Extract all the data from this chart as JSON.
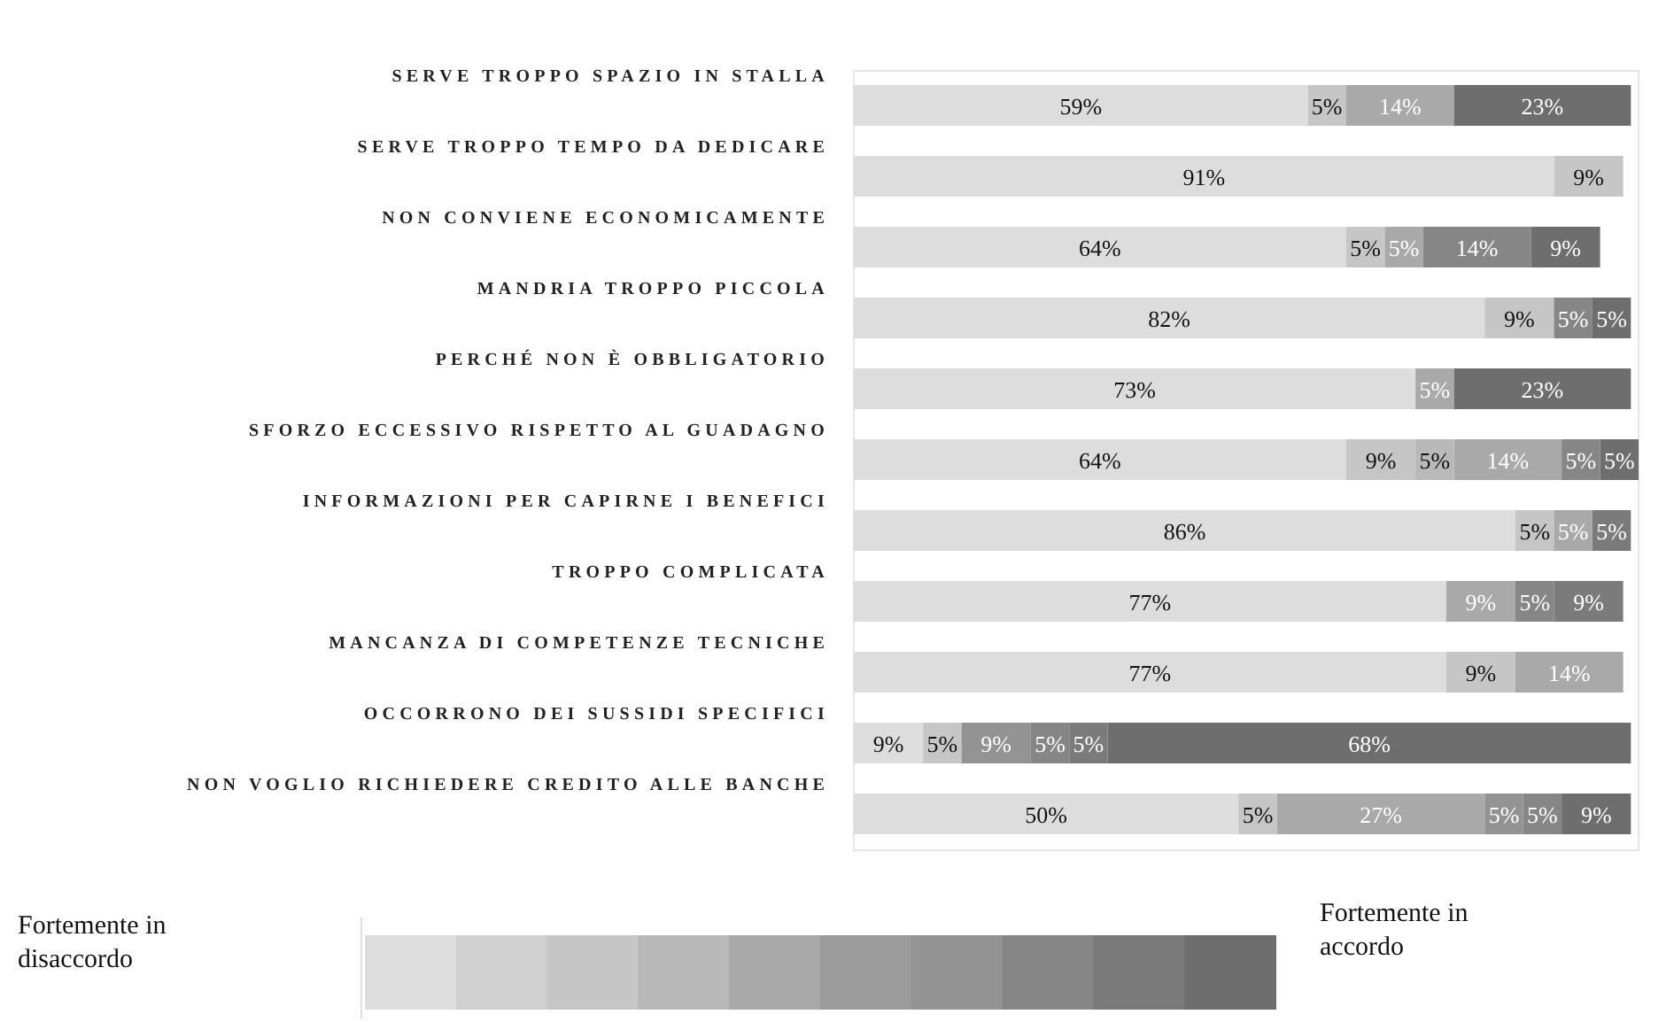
{
  "chart_data": {
    "type": "bar",
    "orientation": "horizontal",
    "stacked": true,
    "categories": [
      "SERVE TROPPO SPAZIO IN STALLA",
      "SERVE TROPPO TEMPO DA DEDICARE",
      "NON CONVIENE ECONOMICAMENTE",
      "MANDRIA TROPPO PICCOLA",
      "PERCHÉ NON È OBBLIGATORIO",
      "SFORZO ECCESSIVO RISPETTO AL GUADAGNO",
      "INFORMAZIONI PER CAPIRNE I BENEFICI",
      "TROPPO COMPLICATA",
      "MANCANZA DI COMPETENZE TECNICHE",
      "OCCORRONO DEI SUSSIDI SPECIFICI",
      "NON VOGLIO RICHIEDERE CREDITO ALLE BANCHE"
    ],
    "tick_labels": "y",
    "series": [
      {
        "color": "#dddddd",
        "values": [
          59,
          91,
          64,
          82,
          73,
          64,
          86,
          77,
          77,
          9,
          50
        ],
        "value_labels": [
          "59%",
          "91%",
          "64%",
          "82%",
          "73%",
          "64%",
          "86%",
          "77%",
          "77%",
          "9%",
          "50%"
        ]
      },
      {
        "color": "#d0d0d0",
        "values": [
          null,
          null,
          null,
          null,
          null,
          null,
          null,
          null,
          null,
          null,
          null
        ]
      },
      {
        "color": "#c6c6c6",
        "values": [
          5,
          9,
          5,
          9,
          null,
          9,
          5,
          null,
          9,
          5,
          5
        ],
        "value_labels": [
          "5%",
          "9%",
          "5%",
          "9%",
          null,
          "9%",
          "5%",
          null,
          "9%",
          "5%",
          "5%"
        ]
      },
      {
        "color": "#b9b9b9",
        "values": [
          null,
          null,
          null,
          null,
          null,
          5,
          null,
          null,
          null,
          null,
          null
        ],
        "value_labels": [
          null,
          null,
          null,
          null,
          null,
          "5%",
          null,
          null,
          null,
          null,
          null
        ]
      },
      {
        "color": "#a9a9a9",
        "values": [
          14,
          null,
          5,
          null,
          5,
          14,
          5,
          9,
          14,
          null,
          27
        ],
        "value_labels": [
          "14%",
          null,
          "5%",
          null,
          "5%",
          "14%",
          "5%",
          "9%",
          "14%",
          null,
          "27%"
        ]
      },
      {
        "color": "#9c9c9c",
        "values": [
          null,
          null,
          null,
          null,
          null,
          null,
          null,
          null,
          null,
          null,
          null
        ]
      },
      {
        "color": "#939393",
        "values": [
          null,
          null,
          null,
          null,
          null,
          null,
          null,
          null,
          null,
          9,
          5
        ],
        "value_labels": [
          null,
          null,
          null,
          null,
          null,
          null,
          null,
          null,
          null,
          "9%",
          "5%"
        ]
      },
      {
        "color": "#868686",
        "values": [
          null,
          null,
          14,
          5,
          null,
          5,
          null,
          5,
          null,
          5,
          5
        ],
        "value_labels": [
          null,
          null,
          "14%",
          "5%",
          null,
          "5%",
          null,
          "5%",
          null,
          "5%",
          "5%"
        ]
      },
      {
        "color": "#7b7b7b",
        "values": [
          null,
          null,
          null,
          null,
          null,
          null,
          5,
          9,
          null,
          5,
          null
        ],
        "value_labels": [
          null,
          null,
          null,
          null,
          null,
          null,
          "5%",
          "9%",
          null,
          "5%",
          null
        ]
      },
      {
        "color": "#6e6e6e",
        "values": [
          23,
          null,
          9,
          5,
          23,
          5,
          null,
          null,
          null,
          68,
          9
        ],
        "value_labels": [
          "23%",
          null,
          "9%",
          "5%",
          "23%",
          "5%",
          null,
          null,
          null,
          "68%",
          "9%"
        ]
      }
    ],
    "annotations": [
      "Fortemente in disaccordo",
      "Fortemente in accordo"
    ]
  }
}
